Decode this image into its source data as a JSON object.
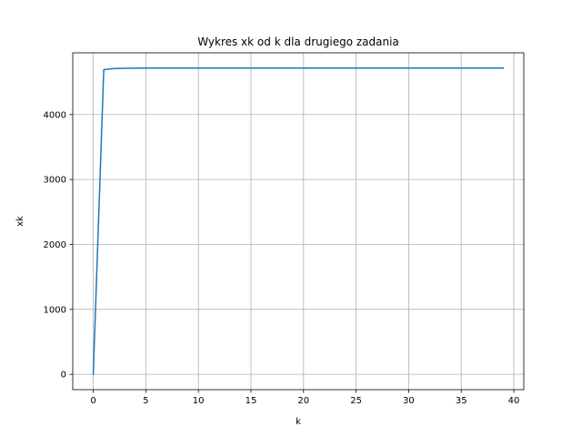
{
  "chart_data": {
    "type": "line",
    "title": "Wykres xk od k dla drugiego zadania",
    "xlabel": "k",
    "ylabel": "xk",
    "xlim": [
      -1.95,
      40.95
    ],
    "ylim": [
      -236,
      4950
    ],
    "xticks": [
      0,
      5,
      10,
      15,
      20,
      25,
      30,
      35,
      40
    ],
    "yticks": [
      0,
      1000,
      2000,
      3000,
      4000
    ],
    "grid": true,
    "legend": "none",
    "series": [
      {
        "color": "#1f77b4",
        "x": [
          0,
          1,
          2,
          3,
          4,
          5,
          6,
          7,
          8,
          9,
          10,
          11,
          12,
          13,
          14,
          15,
          16,
          17,
          18,
          19,
          20,
          21,
          22,
          23,
          24,
          25,
          26,
          27,
          28,
          29,
          30,
          31,
          32,
          33,
          34,
          35,
          36,
          37,
          38,
          39
        ],
        "y": [
          0,
          4690,
          4708,
          4712,
          4714,
          4715,
          4715,
          4715,
          4715,
          4715,
          4715,
          4715,
          4715,
          4715,
          4715,
          4715,
          4715,
          4715,
          4715,
          4715,
          4715,
          4715,
          4715,
          4715,
          4715,
          4715,
          4715,
          4715,
          4715,
          4715,
          4715,
          4715,
          4715,
          4715,
          4715,
          4715,
          4715,
          4715,
          4715,
          4715
        ]
      }
    ]
  }
}
